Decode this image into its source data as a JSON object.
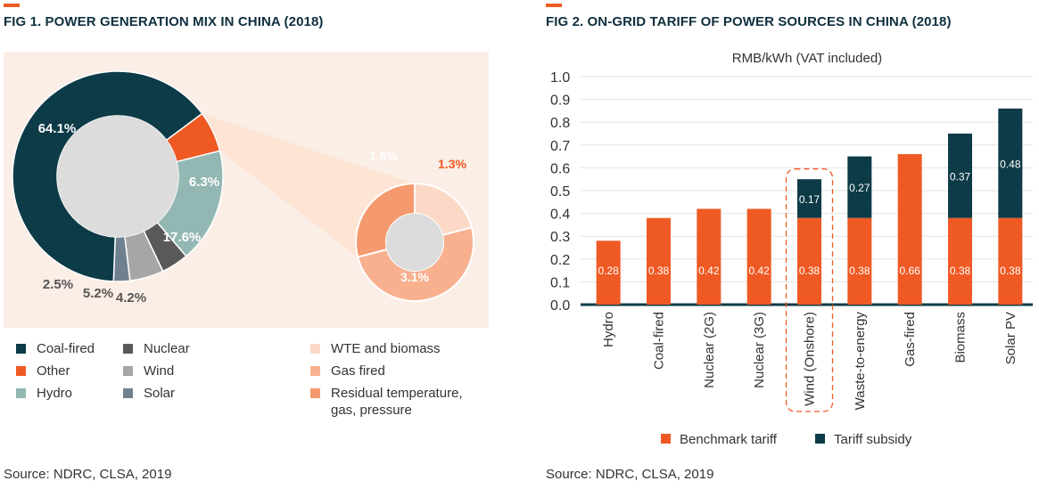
{
  "fig1": {
    "title": "FIG 1. POWER GENERATION MIX IN CHINA (2018)",
    "source": "Source: NDRC, CLSA, 2019",
    "chart_data": {
      "type": "pie",
      "title": "FIG 1. POWER GENERATION MIX IN CHINA (2018)",
      "main": [
        {
          "name": "Coal-fired",
          "value": 64.1,
          "label": "64.1%",
          "color": "#0d3b47"
        },
        {
          "name": "Other",
          "value": 6.3,
          "label": "6.3%",
          "color": "#ef5a24"
        },
        {
          "name": "Hydro",
          "value": 17.6,
          "label": "17.6%",
          "color": "#93b7b3"
        },
        {
          "name": "Nuclear",
          "value": 4.2,
          "label": "4.2%",
          "color": "#595959"
        },
        {
          "name": "Wind",
          "value": 5.2,
          "label": "5.2%",
          "color": "#a6a6a6"
        },
        {
          "name": "Solar",
          "value": 2.5,
          "label": "2.5%",
          "color": "#6f818f"
        }
      ],
      "other_breakdown": [
        {
          "name": "WTE and biomass",
          "value": 1.3,
          "label": "1.3%",
          "color": "#fcd9c6"
        },
        {
          "name": "Gas fired",
          "value": 3.1,
          "label": "3.1%",
          "color": "#f8b08f"
        },
        {
          "name": "Residual temperature, gas, pressure",
          "value": 1.8,
          "label": "1.8%",
          "color": "#f59a6e"
        }
      ]
    },
    "legend": [
      {
        "label": "Coal-fired",
        "color": "#0d3b47"
      },
      {
        "label": "Other",
        "color": "#ef5a24"
      },
      {
        "label": "Hydro",
        "color": "#93b7b3"
      },
      {
        "label": "Nuclear",
        "color": "#595959"
      },
      {
        "label": "Wind",
        "color": "#a6a6a6"
      },
      {
        "label": "Solar",
        "color": "#6f818f"
      },
      {
        "label": "WTE and biomass",
        "color": "#fcd9c6"
      },
      {
        "label": "Gas fired",
        "color": "#f8b08f"
      },
      {
        "label": "Residual temperature,",
        "label2": "gas, pressure",
        "color": "#f59a6e"
      }
    ]
  },
  "fig2": {
    "title": "FIG 2. ON-GRID TARIFF OF POWER SOURCES IN CHINA (2018)",
    "source": "Source: NDRC, CLSA, 2019",
    "chart_data": {
      "type": "bar",
      "stacked": true,
      "title": "FIG 2. ON-GRID TARIFF OF POWER SOURCES IN CHINA (2018)",
      "ylabel": "RMB/kWh (VAT included)",
      "ylim": [
        0,
        1.0
      ],
      "yticks": [
        "0.0",
        "0.1",
        "0.2",
        "0.3",
        "0.4",
        "0.5",
        "0.6",
        "0.7",
        "0.8",
        "0.9",
        "1.0"
      ],
      "categories": [
        "Hydro",
        "Coal-fired",
        "Nuclear (2G)",
        "Nuclear (3G)",
        "Wind (Onshore)",
        "Waste-to-energy",
        "Gas-fired",
        "Biomass",
        "Solar PV"
      ],
      "series": [
        {
          "name": "Benchmark tariff",
          "color": "#ef5a24",
          "values": [
            0.28,
            0.38,
            0.42,
            0.42,
            0.38,
            0.38,
            0.66,
            0.38,
            0.38
          ],
          "labels": [
            "0.28",
            "0.38",
            "0.42",
            "0.42",
            "0.38",
            "0.38",
            "0.66",
            "0.38",
            "0.38"
          ]
        },
        {
          "name": "Tariff subsidy",
          "color": "#0d3b47",
          "values": [
            0,
            0,
            0,
            0,
            0.17,
            0.27,
            0,
            0.37,
            0.48
          ],
          "labels": [
            "",
            "",
            "",
            "",
            "0.17",
            "0.27",
            "",
            "0.37",
            "0.48"
          ]
        }
      ],
      "highlight": "Wind (Onshore)",
      "legend_position": "bottom"
    }
  }
}
